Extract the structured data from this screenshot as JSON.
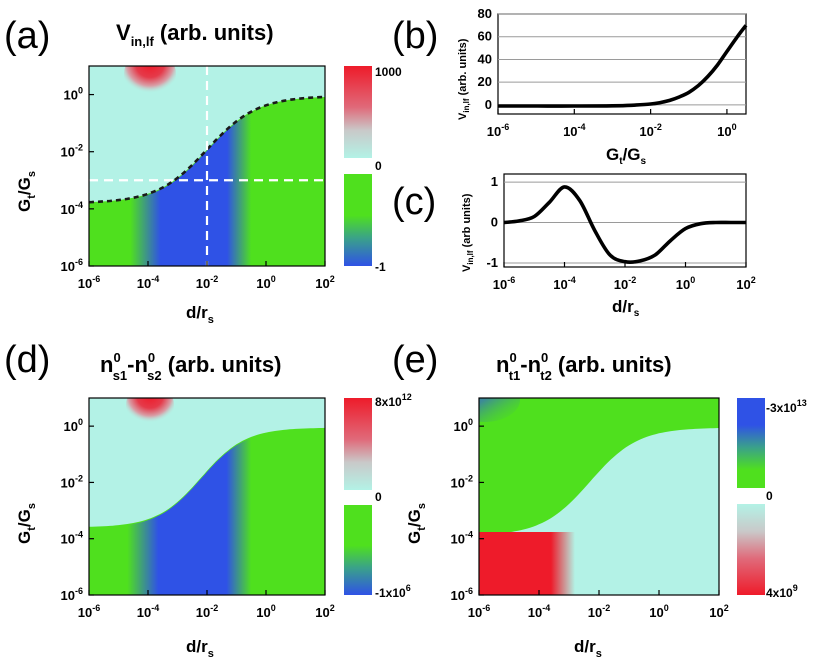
{
  "colors": {
    "cyan": "#b3f2e6",
    "green": "#4fe01e",
    "blue": "#2f52e6",
    "red": "#ee1b2a",
    "grey": "#c4c4c4",
    "grid": "#9a9a9a"
  },
  "chart_data": [
    {
      "panel": "(a)",
      "type": "heatmap",
      "title": [
        "V",
        "in,lf",
        " (arb. units)"
      ],
      "xlabel": [
        "d/r",
        "s"
      ],
      "ylabel": [
        "G",
        "t",
        "/G",
        "s"
      ],
      "x_ticks": [
        "-6",
        "-4",
        "-2",
        "0",
        "2"
      ],
      "y_ticks": [
        "0",
        "-2",
        "-4",
        "-6"
      ],
      "xlim_log10": [
        -6,
        2
      ],
      "ylim_log10": [
        -6,
        1
      ],
      "colorbar_ticks": [
        "1000",
        "0",
        "-1"
      ],
      "boundary_curve": {
        "low_plateau_log10": -3.8,
        "high_plateau_log10": -0.05,
        "midpoint_log10_x": -2.0
      },
      "crosshair": {
        "x_log10": -2,
        "y_log10": -3
      },
      "regions": [
        {
          "name": "positive peak",
          "color": "red",
          "x_log10": -4,
          "y_log10": 0.5
        },
        {
          "name": "negative region",
          "color": "blue",
          "x_log10_range": [
            -4.6,
            -0.5
          ]
        }
      ]
    },
    {
      "panel": "(b)",
      "type": "line",
      "xlabel": [
        "G",
        "t",
        "/G",
        "s"
      ],
      "ylabel": [
        "V",
        "in,lf",
        " (arb. units)"
      ],
      "x_ticks": [
        "-6",
        "-4",
        "-2",
        "0"
      ],
      "y_ticks": [
        "80",
        "60",
        "40",
        "20",
        "0"
      ],
      "xlim_log10": [
        -6,
        0.5
      ],
      "ylim": [
        -8,
        80
      ],
      "x_log10": [
        -6,
        -5,
        -4,
        -3,
        -2.5,
        -2,
        -1.75,
        -1.5,
        -1.25,
        -1,
        -0.75,
        -0.5,
        -0.25,
        0,
        0.25,
        0.5
      ],
      "y": [
        -1,
        -1,
        -1,
        -0.8,
        -0.3,
        0.8,
        2,
        4,
        7,
        11,
        17,
        25,
        35,
        47,
        59,
        70
      ]
    },
    {
      "panel": "(c)",
      "type": "line",
      "xlabel": [
        "d/r",
        "s"
      ],
      "ylabel": [
        "V",
        "in,lf",
        " (arb units)"
      ],
      "x_ticks": [
        "-6",
        "-4",
        "-2",
        "0",
        "2"
      ],
      "y_ticks": [
        "1",
        "0",
        "-1"
      ],
      "xlim_log10": [
        -6,
        2
      ],
      "ylim": [
        -1.1,
        1.2
      ],
      "x_log10": [
        -6,
        -5.5,
        -5,
        -4.5,
        -4,
        -3.5,
        -3,
        -2.5,
        -2,
        -1.5,
        -1,
        -0.5,
        0,
        0.5,
        1,
        1.5,
        2
      ],
      "y": [
        0,
        0.04,
        0.15,
        0.5,
        0.88,
        0.55,
        -0.2,
        -0.8,
        -0.97,
        -0.95,
        -0.8,
        -0.45,
        -0.15,
        -0.03,
        0,
        0,
        0
      ]
    },
    {
      "panel": "(d)",
      "type": "heatmap",
      "title": [
        "n",
        "0",
        "s1",
        "-n",
        "0",
        "s2",
        " (arb. units)"
      ],
      "xlabel": [
        "d/r",
        "s"
      ],
      "ylabel": [
        "G",
        "t",
        "/G",
        "s"
      ],
      "x_ticks": [
        "-6",
        "-4",
        "-2",
        "0",
        "2"
      ],
      "y_ticks": [
        "0",
        "-2",
        "-4",
        "-6"
      ],
      "xlim_log10": [
        -6,
        2
      ],
      "ylim_log10": [
        -6,
        1
      ],
      "colorbar_ticks": [
        "8x10",
        "12",
        "0",
        "-1x10",
        "6"
      ]
    },
    {
      "panel": "(e)",
      "type": "heatmap",
      "title": [
        "n",
        "0",
        "t1",
        "-n",
        "0",
        "t2",
        " (arb. units)"
      ],
      "xlabel": [
        "d/r",
        "s"
      ],
      "ylabel": [
        "G",
        "t",
        "/G",
        "s"
      ],
      "x_ticks": [
        "-6",
        "-4",
        "-2",
        "0",
        "2"
      ],
      "y_ticks": [
        "0",
        "-2",
        "-4",
        "-6"
      ],
      "xlim_log10": [
        -6,
        2
      ],
      "ylim_log10": [
        -6,
        1
      ],
      "colorbar_ticks": [
        "-3x10",
        "13",
        "0",
        "4x10",
        "9"
      ]
    }
  ],
  "labels": {
    "a": "(a)",
    "b": "(b)",
    "c": "(c)",
    "d": "(d)",
    "e": "(e)",
    "base": "10"
  }
}
